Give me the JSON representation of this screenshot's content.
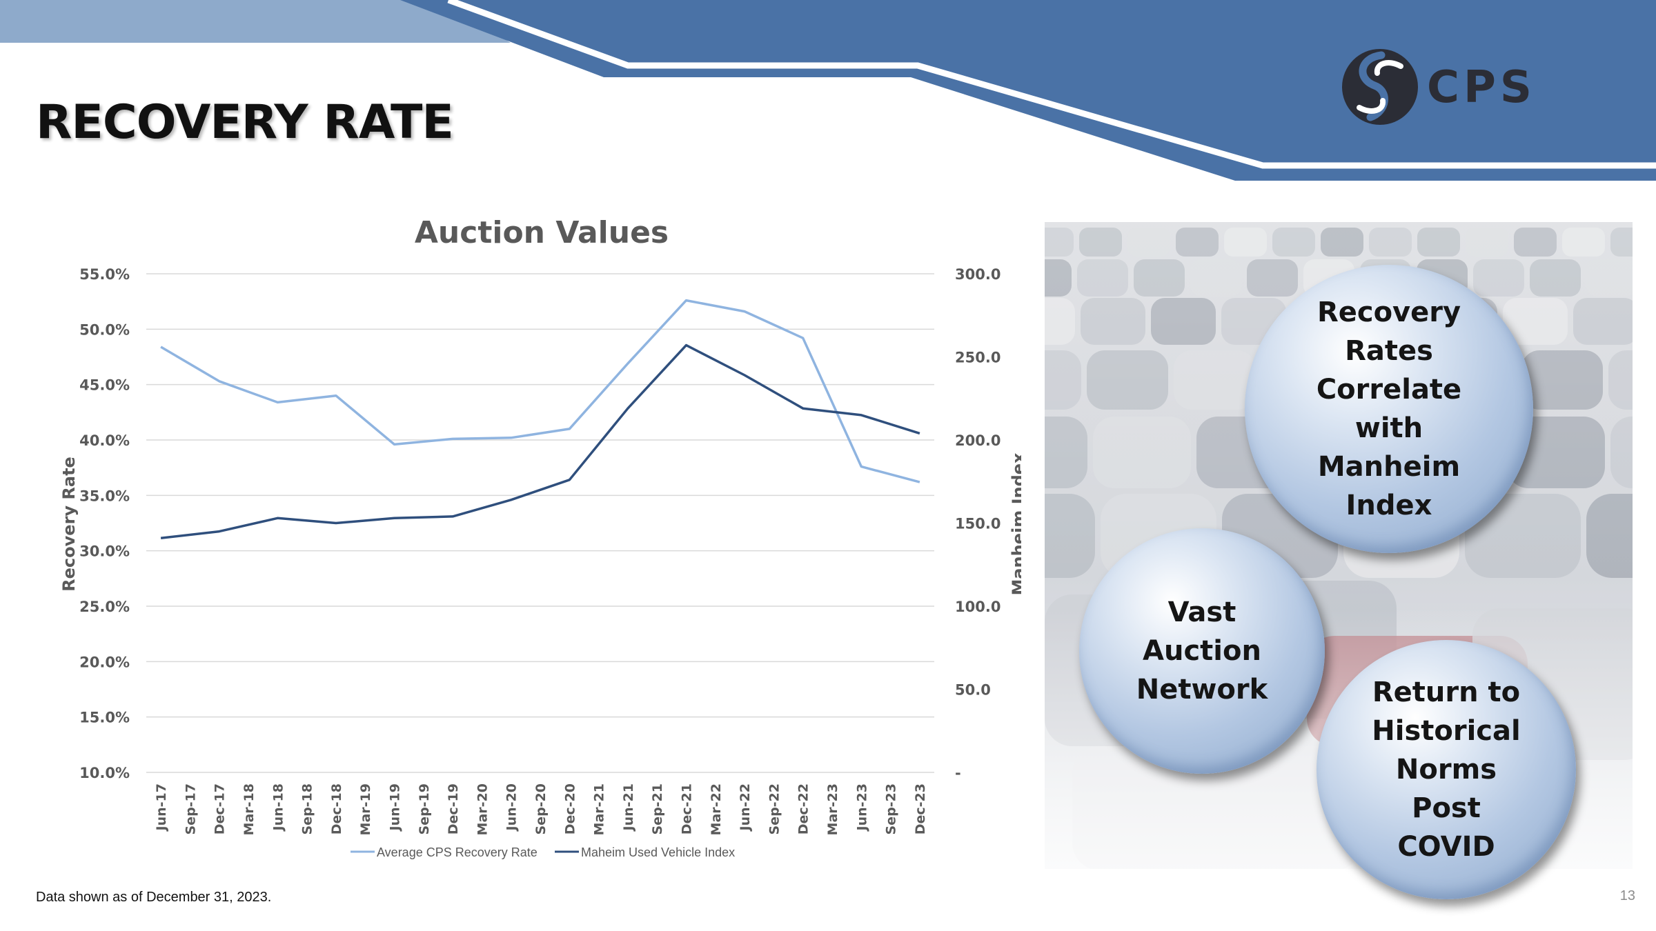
{
  "header": {
    "title": "RECOVERY RATE",
    "logo_text": "CPS"
  },
  "colors": {
    "banner_dark": "#4a72a6",
    "banner_light": "#8eaacb",
    "series_recovery": "#8fb4e0",
    "series_manheim": "#2f4f7d",
    "axis_text": "#595959",
    "grid": "#d9d9d9"
  },
  "chart_data": {
    "type": "line",
    "title": "Auction Values",
    "ylabel": "Recovery Rate",
    "y2label": "Manheim Index",
    "ylim": [
      0.1,
      0.55
    ],
    "y2lim": [
      0,
      300
    ],
    "y_ticks": [
      "55.0%",
      "50.0%",
      "45.0%",
      "40.0%",
      "35.0%",
      "30.0%",
      "25.0%",
      "20.0%",
      "15.0%",
      "10.0%"
    ],
    "y2_ticks": [
      "300.0",
      "250.0",
      "200.0",
      "150.0",
      "100.0",
      "50.0",
      "-"
    ],
    "grid": true,
    "legend_position": "bottom",
    "categories": [
      "Jun-17",
      "Sep-17",
      "Dec-17",
      "Mar-18",
      "Jun-18",
      "Sep-18",
      "Dec-18",
      "Mar-19",
      "Jun-19",
      "Sep-19",
      "Dec-19",
      "Mar-20",
      "Jun-20",
      "Sep-20",
      "Dec-20",
      "Mar-21",
      "Jun-21",
      "Sep-21",
      "Dec-21",
      "Mar-22",
      "Jun-22",
      "Sep-22",
      "Dec-22",
      "Mar-23",
      "Jun-23",
      "Sep-23",
      "Dec-23"
    ],
    "series": [
      {
        "name": "Average CPS Recovery Rate",
        "axis": "left",
        "color": "#8fb4e0",
        "values": [
          0.484,
          null,
          0.453,
          null,
          0.434,
          null,
          0.44,
          null,
          0.396,
          null,
          0.401,
          null,
          0.402,
          null,
          0.41,
          null,
          0.469,
          null,
          0.526,
          null,
          0.516,
          null,
          0.492,
          null,
          0.376,
          null,
          0.362
        ]
      },
      {
        "name": "Maheim Used Vehicle Index",
        "axis": "right",
        "color": "#2f4f7d",
        "values": [
          141,
          null,
          145,
          null,
          153,
          null,
          150,
          null,
          153,
          null,
          154,
          null,
          164,
          null,
          176,
          null,
          219,
          null,
          257,
          null,
          239,
          null,
          219,
          null,
          215,
          null,
          204
        ]
      }
    ]
  },
  "panel": {
    "bubbles": [
      "Recovery Rates Correlate with Manheim Index",
      "Vast Auction Network",
      "Return to Historical Norms Post COVID"
    ]
  },
  "footer": {
    "note": "Data shown as of December 31, 2023.",
    "page_number": "13"
  }
}
